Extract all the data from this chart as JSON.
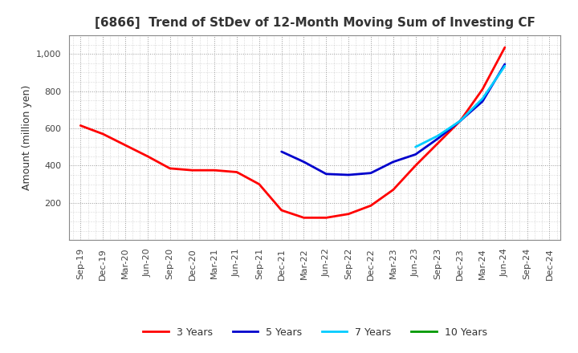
{
  "title": "[6866]  Trend of StDev of 12-Month Moving Sum of Investing CF",
  "ylabel": "Amount (million yen)",
  "background_color": "#ffffff",
  "grid_color": "#999999",
  "x_labels": [
    "Sep-19",
    "Dec-19",
    "Mar-20",
    "Jun-20",
    "Sep-20",
    "Dec-20",
    "Mar-21",
    "Jun-21",
    "Sep-21",
    "Dec-21",
    "Mar-22",
    "Jun-22",
    "Sep-22",
    "Dec-22",
    "Mar-23",
    "Jun-23",
    "Sep-23",
    "Dec-23",
    "Mar-24",
    "Jun-24",
    "Sep-24",
    "Dec-24"
  ],
  "series": [
    {
      "name": "3 Years",
      "color": "#ff0000",
      "data_x": [
        0,
        1,
        2,
        3,
        4,
        5,
        6,
        7,
        8,
        9,
        10,
        11,
        12,
        13,
        14,
        15,
        16,
        17,
        18,
        19
      ],
      "data_y": [
        615,
        570,
        510,
        450,
        385,
        375,
        375,
        365,
        300,
        160,
        120,
        120,
        140,
        185,
        270,
        400,
        520,
        640,
        810,
        1035
      ]
    },
    {
      "name": "5 Years",
      "color": "#0000cc",
      "data_x": [
        9,
        10,
        11,
        12,
        13,
        14,
        15,
        16,
        17,
        18,
        19
      ],
      "data_y": [
        475,
        420,
        355,
        350,
        360,
        420,
        460,
        545,
        640,
        745,
        945
      ]
    },
    {
      "name": "7 Years",
      "color": "#00ccff",
      "data_x": [
        15,
        16,
        17,
        18,
        19
      ],
      "data_y": [
        500,
        560,
        640,
        760,
        935
      ]
    },
    {
      "name": "10 Years",
      "color": "#009900",
      "data_x": [],
      "data_y": []
    }
  ],
  "ylim": [
    0,
    1100
  ],
  "yticks": [
    200,
    400,
    600,
    800,
    1000
  ],
  "ytick_labels": [
    "200",
    "400",
    "600",
    "800",
    "1,000"
  ],
  "title_fontsize": 11,
  "label_fontsize": 9,
  "tick_fontsize": 8,
  "linewidth": 2.0
}
